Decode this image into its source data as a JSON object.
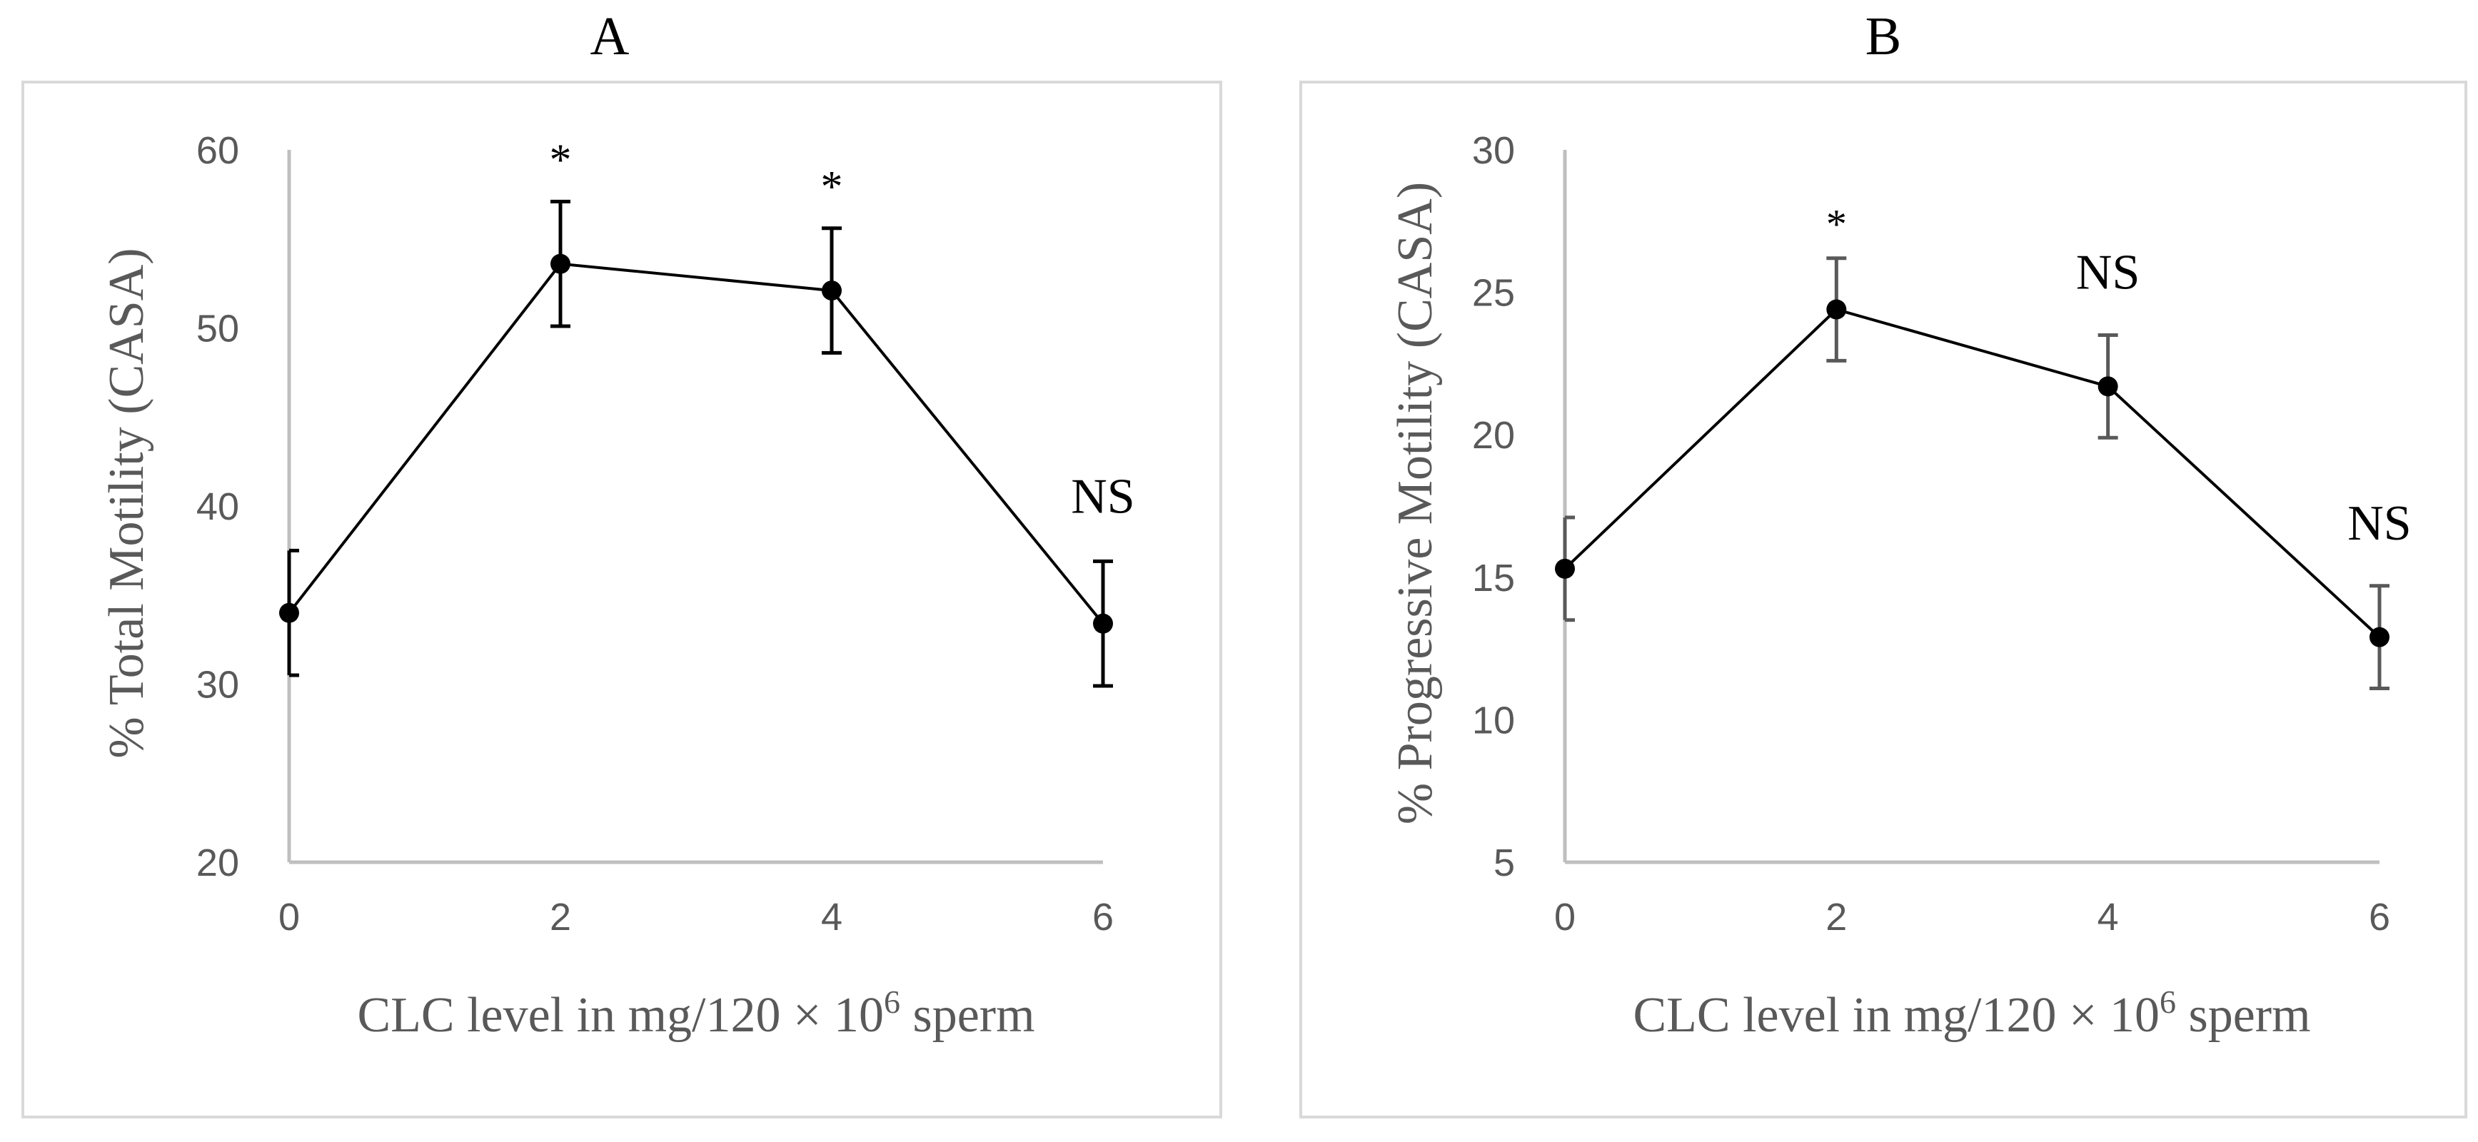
{
  "chart_data": [
    {
      "type": "line",
      "title": "A",
      "xlabel": "CLC level in mg/120 × 10",
      "xlabel_sup": "6",
      "xlabel_suffix": " sperm",
      "ylabel": "% Total Motility (CASA)",
      "x": [
        0,
        2,
        4,
        6
      ],
      "xticks": [
        "0",
        "2",
        "4",
        "6"
      ],
      "xlim": [
        0,
        6
      ],
      "ylim": [
        20,
        60
      ],
      "yticks": [
        "20",
        "30",
        "40",
        "50",
        "60"
      ],
      "grid": false,
      "series": [
        {
          "values": [
            34.0,
            53.6,
            52.1,
            33.4
          ],
          "error": [
            3.5,
            3.5,
            3.5,
            3.5
          ],
          "annotations": [
            "",
            "*",
            "*",
            "NS"
          ]
        }
      ]
    },
    {
      "type": "line",
      "title": "B",
      "xlabel": "CLC level in mg/120 × 10",
      "xlabel_sup": "6",
      "xlabel_suffix": " sperm",
      "ylabel": "% Progressive Motility (CASA)",
      "x": [
        0,
        2,
        4,
        6
      ],
      "xticks": [
        "0",
        "2",
        "4",
        "6"
      ],
      "xlim": [
        0,
        6
      ],
      "ylim": [
        5,
        30
      ],
      "yticks": [
        "5",
        "10",
        "15",
        "20",
        "25",
        "30"
      ],
      "grid": false,
      "series": [
        {
          "values": [
            15.3,
            24.4,
            21.7,
            12.9
          ],
          "error": [
            1.8,
            1.8,
            1.8,
            1.8
          ],
          "annotations": [
            "",
            "*",
            "NS",
            "NS"
          ]
        }
      ]
    }
  ]
}
